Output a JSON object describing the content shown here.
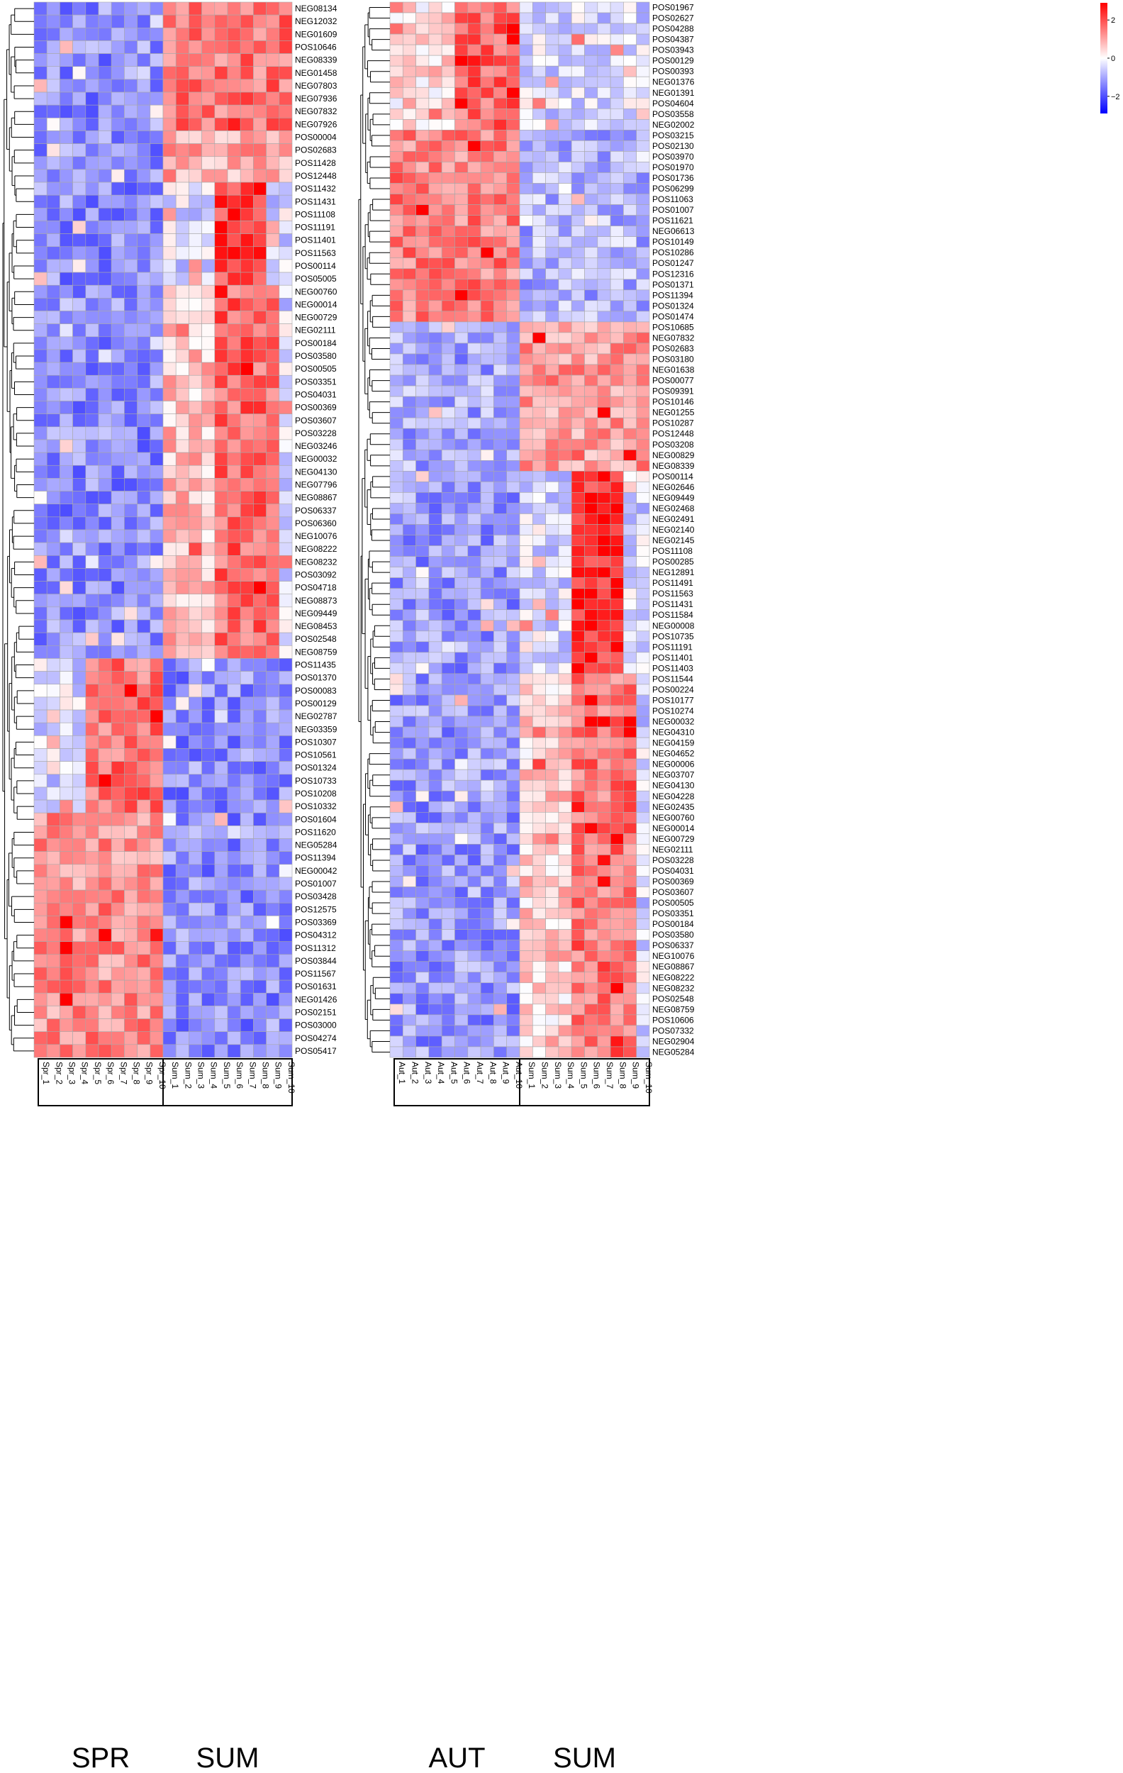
{
  "chart_data": [
    {
      "type": "heatmap",
      "panel": "left",
      "columns": [
        "Spr_1",
        "Spr_2",
        "Spr_3",
        "Spr_4",
        "Spr_5",
        "Spr_6",
        "Spr_7",
        "Spr_8",
        "Spr_9",
        "Spr_10",
        "Sum_1",
        "Sum_2",
        "Sum_3",
        "Sum_4",
        "Sum_5",
        "Sum_6",
        "Sum_7",
        "Sum_8",
        "Sum_9",
        "Sum_10"
      ],
      "groups": [
        {
          "label": "SPR",
          "start": 0,
          "end": 9
        },
        {
          "label": "SUM",
          "start": 10,
          "end": 19
        }
      ],
      "rows": [
        "NEG08134",
        "NEG12032",
        "NEG01609",
        "POS10646",
        "NEG08339",
        "NEG01458",
        "NEG07803",
        "NEG07936",
        "NEG07832",
        "NEG07926",
        "POS00004",
        "POS02683",
        "POS11428",
        "POS12448",
        "POS11432",
        "POS11431",
        "POS11108",
        "POS11191",
        "POS11401",
        "POS11563",
        "POS00114",
        "POS05005",
        "NEG00760",
        "NEG00014",
        "NEG00729",
        "NEG02111",
        "POS00184",
        "POS03580",
        "POS00505",
        "POS03351",
        "POS04031",
        "POS00369",
        "POS03607",
        "POS03228",
        "NEG03246",
        "NEG00032",
        "NEG04130",
        "NEG07796",
        "NEG08867",
        "POS06337",
        "POS06360",
        "NEG10076",
        "NEG08222",
        "NEG08232",
        "POS03092",
        "POS04718",
        "NEG08873",
        "NEG09449",
        "NEG08453",
        "POS02548",
        "NEG08759",
        "POS11435",
        "POS01370",
        "POS00083",
        "POS00129",
        "NEG02787",
        "NEG03359",
        "POS10307",
        "POS10561",
        "POS01324",
        "POS10733",
        "POS10208",
        "POS10332",
        "POS01604",
        "POS11620",
        "NEG05284",
        "POS11394",
        "NEG00042",
        "POS01007",
        "POS03428",
        "POS12575",
        "POS03369",
        "POS04312",
        "POS11312",
        "POS03844",
        "POS11567",
        "POS01631",
        "NEG01426",
        "POS02151",
        "POS03000",
        "POS04274",
        "POS05417"
      ],
      "hot": [
        {
          "rows": [
            0,
            9
          ],
          "cols": [
            10,
            19
          ],
          "level": 0.55
        },
        {
          "rows": [
            10,
            13
          ],
          "cols": [
            10,
            19
          ],
          "level": 0.35
        },
        {
          "rows": [
            14,
            21
          ],
          "cols": [
            14,
            17
          ],
          "level": 0.75
        },
        {
          "rows": [
            22,
            50
          ],
          "cols": [
            14,
            18
          ],
          "level": 0.6
        },
        {
          "rows": [
            22,
            50
          ],
          "cols": [
            10,
            13
          ],
          "level": 0.25
        },
        {
          "rows": [
            51,
            62
          ],
          "cols": [
            4,
            9
          ],
          "level": 0.55
        },
        {
          "rows": [
            63,
            81
          ],
          "cols": [
            0,
            9
          ],
          "level": 0.45
        },
        {
          "rows": [
            51,
            81
          ],
          "cols": [
            10,
            19
          ],
          "level": -0.45
        },
        {
          "rows": [
            0,
            50
          ],
          "cols": [
            0,
            9
          ],
          "level": -0.45
        }
      ]
    },
    {
      "type": "heatmap",
      "panel": "right",
      "columns": [
        "Aut_1",
        "Aut_2",
        "Aut_3",
        "Aut_4",
        "Aut_5",
        "Aut_6",
        "Aut_7",
        "Aut_8",
        "Aut_9",
        "Aut_10",
        "Sum_1",
        "Sum_2",
        "Sum_3",
        "Sum_4",
        "Sum_5",
        "Sum_6",
        "Sum_7",
        "Sum_8",
        "Sum_9",
        "Sum_10"
      ],
      "groups": [
        {
          "label": "AUT",
          "start": 0,
          "end": 9
        },
        {
          "label": "SUM",
          "start": 10,
          "end": 19
        }
      ],
      "rows": [
        "POS01967",
        "POS02627",
        "POS04288",
        "POS04387",
        "POS03943",
        "POS00129",
        "POS00393",
        "NEG01376",
        "NEG01391",
        "POS04604",
        "POS03558",
        "NEG02002",
        "POS03215",
        "POS02130",
        "POS03970",
        "POS01970",
        "POS01736",
        "POS06299",
        "POS11063",
        "POS01007",
        "POS11621",
        "NEG06613",
        "POS10149",
        "POS10286",
        "POS01247",
        "POS12316",
        "POS01371",
        "POS11394",
        "POS01324",
        "POS01474",
        "POS10685",
        "NEG07832",
        "POS02683",
        "POS03180",
        "NEG01638",
        "POS00077",
        "POS09391",
        "POS10146",
        "NEG01255",
        "POS10287",
        "POS12448",
        "POS03208",
        "NEG00829",
        "NEG08339",
        "POS00114",
        "NEG02646",
        "NEG09449",
        "NEG02468",
        "NEG02491",
        "NEG02140",
        "NEG02145",
        "POS11108",
        "POS00285",
        "NEG12891",
        "POS11491",
        "POS11563",
        "POS11431",
        "POS11584",
        "NEG00008",
        "POS10735",
        "POS11191",
        "POS11401",
        "POS11403",
        "POS11544",
        "POS00224",
        "POS10177",
        "POS10274",
        "NEG00032",
        "NEG04310",
        "NEG04159",
        "NEG04652",
        "NEG00006",
        "NEG03707",
        "NEG04130",
        "NEG04228",
        "NEG02435",
        "NEG00760",
        "NEG00014",
        "NEG00729",
        "NEG02111",
        "POS03228",
        "POS04031",
        "POS00369",
        "POS03607",
        "POS00505",
        "POS03351",
        "POS00184",
        "POS03580",
        "POS06337",
        "NEG10076",
        "NEG08867",
        "NEG08222",
        "NEG08232",
        "POS02548",
        "NEG08759",
        "POS10606",
        "POS07332",
        "NEG02904",
        "NEG05284"
      ],
      "hot": [
        {
          "rows": [
            0,
            11
          ],
          "cols": [
            5,
            9
          ],
          "level": 0.6
        },
        {
          "rows": [
            0,
            11
          ],
          "cols": [
            0,
            4
          ],
          "level": 0.15
        },
        {
          "rows": [
            12,
            29
          ],
          "cols": [
            0,
            9
          ],
          "level": 0.5
        },
        {
          "rows": [
            12,
            29
          ],
          "cols": [
            10,
            19
          ],
          "level": -0.3
        },
        {
          "rows": [
            30,
            43
          ],
          "cols": [
            10,
            19
          ],
          "level": 0.4
        },
        {
          "rows": [
            30,
            43
          ],
          "cols": [
            0,
            9
          ],
          "level": -0.35
        },
        {
          "rows": [
            44,
            62
          ],
          "cols": [
            14,
            17
          ],
          "level": 0.8
        },
        {
          "rows": [
            63,
            98
          ],
          "cols": [
            14,
            18
          ],
          "level": 0.55
        },
        {
          "rows": [
            63,
            98
          ],
          "cols": [
            10,
            13
          ],
          "level": 0.2
        },
        {
          "rows": [
            44,
            98
          ],
          "cols": [
            0,
            9
          ],
          "level": -0.4
        }
      ]
    }
  ],
  "legend": {
    "title": "",
    "ticks": [
      {
        "value": 2,
        "label": "2"
      },
      {
        "value": 0,
        "label": "0"
      },
      {
        "value": -2,
        "label": "−2"
      }
    ],
    "colors": {
      "high": "#ff0000",
      "mid": "#ffffff",
      "low": "#0000ff"
    }
  }
}
